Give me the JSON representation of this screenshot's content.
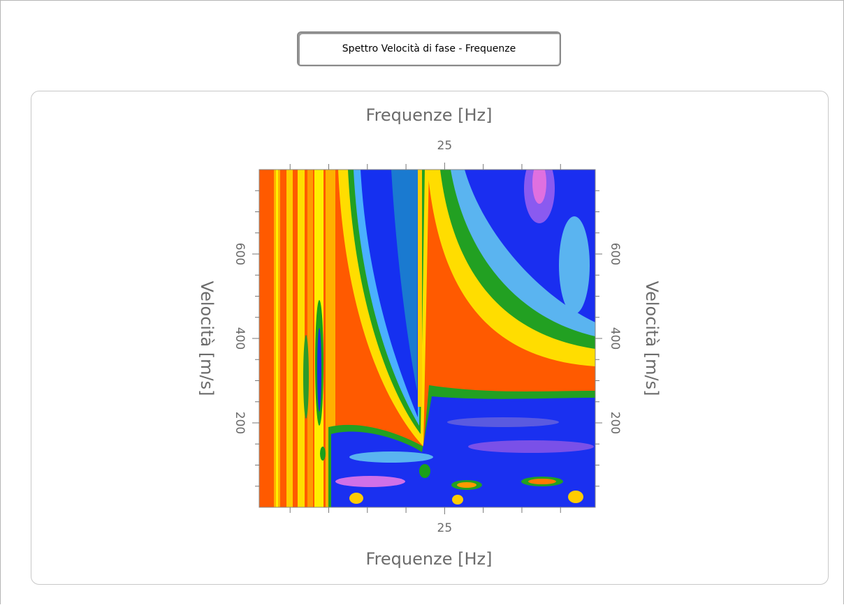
{
  "window": {
    "button": "Spettro Velocità di fase - Frequenze"
  },
  "chart_data": {
    "type": "heatmap",
    "xlabel": "Frequenze [Hz]",
    "ylabel": "Velocità [m/s]",
    "xlim": [
      1,
      44.5
    ],
    "ylim": [
      0,
      800
    ],
    "xticks": [
      25
    ],
    "yticks": [
      200,
      400,
      600
    ],
    "xminorticks": [
      5,
      10,
      15,
      20,
      30,
      35,
      40
    ],
    "yminorticks": [
      50,
      100,
      150,
      250,
      300,
      350,
      450,
      500,
      550,
      650,
      700,
      750
    ]
  }
}
